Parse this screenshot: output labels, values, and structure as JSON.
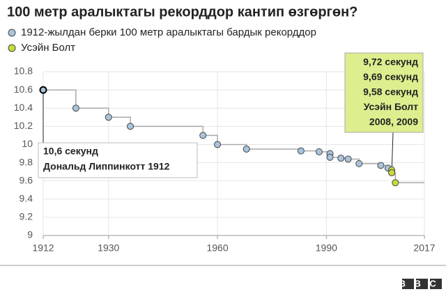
{
  "chart_data": {
    "type": "scatter",
    "title": "100 метр аралыктагы рекорддор кантип өзгөргөн?",
    "series": [
      {
        "name": "1912-жылдан берки 100 метр аралыктагы бардык рекорддор",
        "color": "#a9c4dc",
        "x": [
          1912,
          1921,
          1930,
          1936,
          1956,
          1960,
          1968,
          1983,
          1988,
          1991,
          1991,
          1994,
          1996,
          1999,
          2005,
          2007
        ],
        "values": [
          10.6,
          10.4,
          10.3,
          10.2,
          10.1,
          10.0,
          9.95,
          9.93,
          9.92,
          9.9,
          9.86,
          9.85,
          9.84,
          9.79,
          9.77,
          9.74
        ]
      },
      {
        "name": "Усэйн Болт",
        "color": "#c5dc3a",
        "x": [
          2008,
          2008,
          2009
        ],
        "values": [
          9.72,
          9.69,
          9.58
        ]
      }
    ],
    "xlim": [
      1912,
      2017
    ],
    "xticks": [
      1912,
      1930,
      1960,
      1990,
      2017
    ],
    "ylim": [
      9,
      10.8
    ],
    "yticks": [
      9,
      9.2,
      9.4,
      9.6,
      9.8,
      10,
      10.2,
      10.4,
      10.6,
      10.8
    ],
    "grid": true,
    "annotations": [
      {
        "lines": [
          "10,6 секунд",
          "Дональд Липпинкотт 1912"
        ]
      },
      {
        "lines": [
          "9,72 секунд",
          "9,69 секунд",
          "9,58 секунд",
          "Усэйн Болт",
          "2008, 2009"
        ]
      }
    ],
    "source": "BBC"
  }
}
